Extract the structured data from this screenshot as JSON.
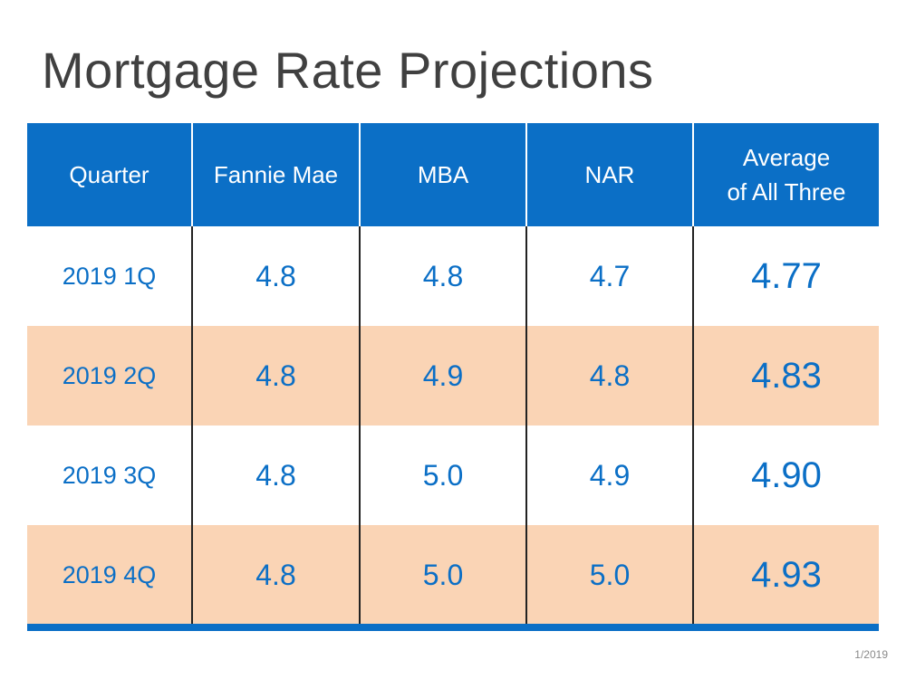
{
  "slide": {
    "title": "Mortgage Rate Projections",
    "date_note": "1/2019"
  },
  "table": {
    "headers": [
      "Quarter",
      "Fannie Mae",
      "MBA",
      "NAR",
      "Average\nof All Three"
    ],
    "rows": [
      {
        "quarter": "2019 1Q",
        "fannie_mae": "4.8",
        "mba": "4.8",
        "nar": "4.7",
        "average": "4.77",
        "shade": "white"
      },
      {
        "quarter": "2019 2Q",
        "fannie_mae": "4.8",
        "mba": "4.9",
        "nar": "4.8",
        "average": "4.83",
        "shade": "peach"
      },
      {
        "quarter": "2019 3Q",
        "fannie_mae": "4.8",
        "mba": "5.0",
        "nar": "4.9",
        "average": "4.90",
        "shade": "white"
      },
      {
        "quarter": "2019 4Q",
        "fannie_mae": "4.8",
        "mba": "5.0",
        "nar": "5.0",
        "average": "4.93",
        "shade": "peach"
      }
    ]
  },
  "colors": {
    "header_blue": "#0b6fc6",
    "value_blue": "#0b6fc6",
    "peach_row": "#fad4b5",
    "title_gray": "#404040"
  }
}
